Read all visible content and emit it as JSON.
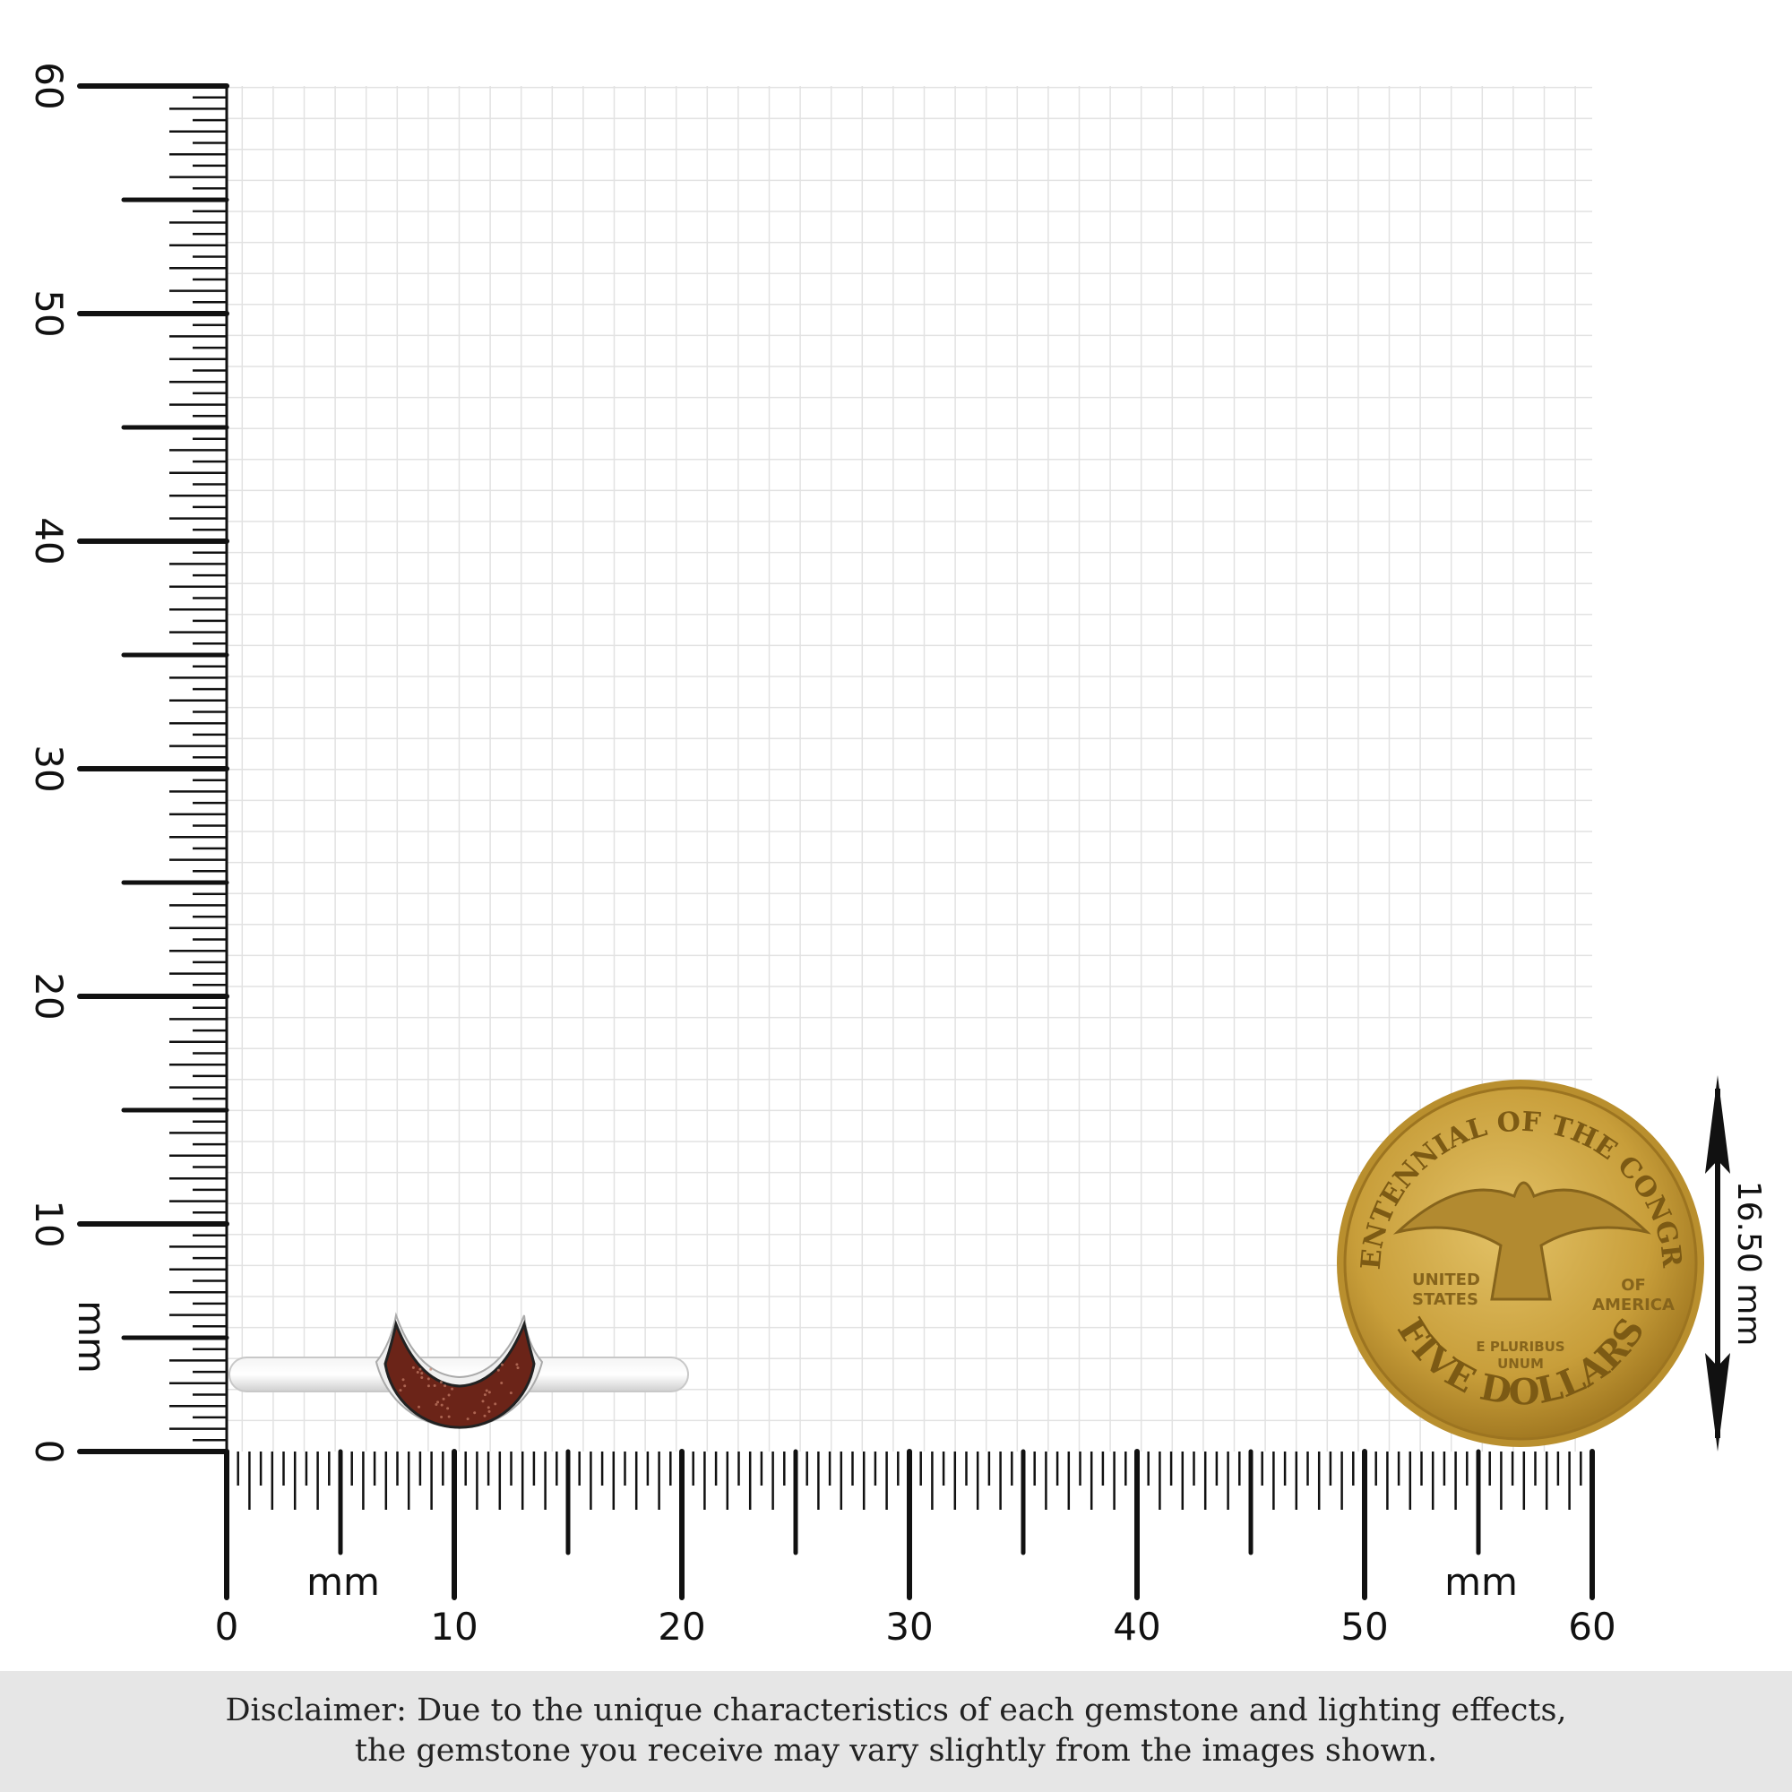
{
  "ruler": {
    "unit": "mm",
    "x_range": [
      0,
      60
    ],
    "y_range": [
      0,
      60
    ],
    "x_labels": [
      "0",
      "10",
      "20",
      "30",
      "40",
      "50",
      "60"
    ],
    "y_labels": [
      "0",
      "10",
      "20",
      "30",
      "40",
      "50",
      "60"
    ],
    "x_unit_label_left": "mm",
    "x_unit_label_right": "mm",
    "y_unit_label": "mm"
  },
  "product": {
    "gemstone_color": "#6b2418",
    "metal_color": "#e8e8e8"
  },
  "reference_coin": {
    "diameter_label": "16.50 mm",
    "top_text": "BICENTENNIAL OF THE CONGRESS",
    "bottom_text": "FIVE DOLLARS",
    "left_text": [
      "UNITED",
      "STATES"
    ],
    "right_text": [
      "OF",
      "AMERICA"
    ],
    "motto": [
      "E PLURIBUS",
      "UNUM"
    ],
    "color": "#c9a23e"
  },
  "disclaimer": {
    "line1": "Disclaimer: Due to the unique characteristics of each gemstone and lighting effects,",
    "line2": "the gemstone you receive may vary slightly from the images shown."
  }
}
